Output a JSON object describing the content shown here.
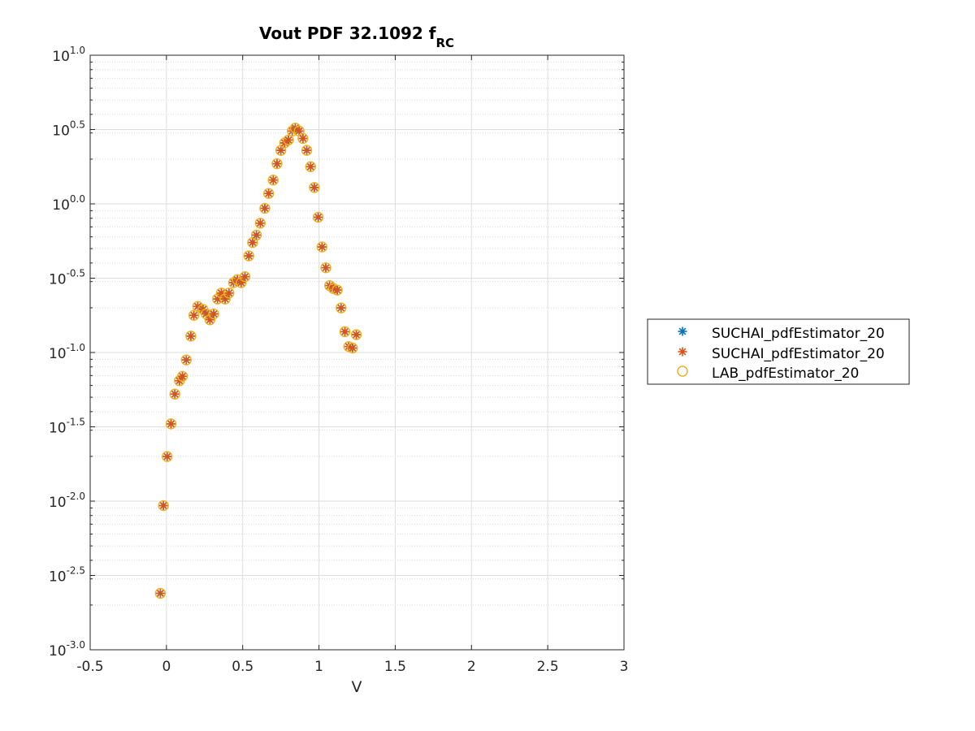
{
  "chart_data": {
    "type": "scatter",
    "title": "Vout PDF 32.1092 f",
    "title_subscript": "RC",
    "xlabel": "V",
    "ylabel": "",
    "xlim": [
      -0.5,
      3
    ],
    "ylim_log10": [
      -3.0,
      1.0
    ],
    "yscale": "log",
    "grid": true,
    "minor_grid": true,
    "legend_position": "outside-right",
    "x_ticks": [
      -0.5,
      0,
      0.5,
      1,
      1.5,
      2,
      2.5,
      3
    ],
    "x_tick_labels": [
      "-0.5",
      "0",
      "0.5",
      "1",
      "1.5",
      "2",
      "2.5",
      "3"
    ],
    "y_ticks_log10": [
      -3.0,
      -2.5,
      -2.0,
      -1.5,
      -1.0,
      -0.5,
      0.0,
      0.5,
      1.0
    ],
    "y_tick_base": "10",
    "y_tick_exponents": [
      "-3.0",
      "-2.5",
      "-2.0",
      "-1.5",
      "-1.0",
      "-0.5",
      "0.0",
      "0.5",
      "1.0"
    ],
    "x": [
      -0.04,
      -0.02,
      0.005,
      0.03,
      0.055,
      0.085,
      0.105,
      0.13,
      0.16,
      0.18,
      0.205,
      0.24,
      0.26,
      0.285,
      0.31,
      0.335,
      0.36,
      0.385,
      0.41,
      0.44,
      0.465,
      0.49,
      0.515,
      0.54,
      0.565,
      0.59,
      0.615,
      0.645,
      0.67,
      0.7,
      0.725,
      0.75,
      0.775,
      0.8,
      0.825,
      0.845,
      0.87,
      0.895,
      0.92,
      0.945,
      0.97,
      0.995,
      1.02,
      1.045,
      1.07,
      1.095,
      1.12,
      1.145,
      1.17,
      1.195,
      1.22,
      1.245
    ],
    "log10_y": [
      -2.62,
      -2.03,
      -1.7,
      -1.48,
      -1.28,
      -1.19,
      -1.16,
      -1.05,
      -0.89,
      -0.75,
      -0.69,
      -0.71,
      -0.74,
      -0.78,
      -0.74,
      -0.64,
      -0.6,
      -0.64,
      -0.6,
      -0.53,
      -0.51,
      -0.53,
      -0.49,
      -0.35,
      -0.26,
      -0.21,
      -0.13,
      -0.03,
      0.07,
      0.16,
      0.27,
      0.36,
      0.41,
      0.43,
      0.49,
      0.51,
      0.49,
      0.44,
      0.36,
      0.25,
      0.11,
      -0.09,
      -0.29,
      -0.43,
      -0.55,
      -0.57,
      -0.58,
      -0.7,
      -0.86,
      -0.96,
      -0.97,
      -0.88
    ],
    "series": [
      {
        "name": "SUCHAI_pdfEstimator_20",
        "marker": "asterisk",
        "color": "#0072BD"
      },
      {
        "name": "SUCHAI_pdfEstimator_20",
        "marker": "asterisk",
        "color": "#D95319"
      },
      {
        "name": "LAB_pdfEstimator_20",
        "marker": "circle",
        "color": "#EDB120"
      }
    ]
  }
}
